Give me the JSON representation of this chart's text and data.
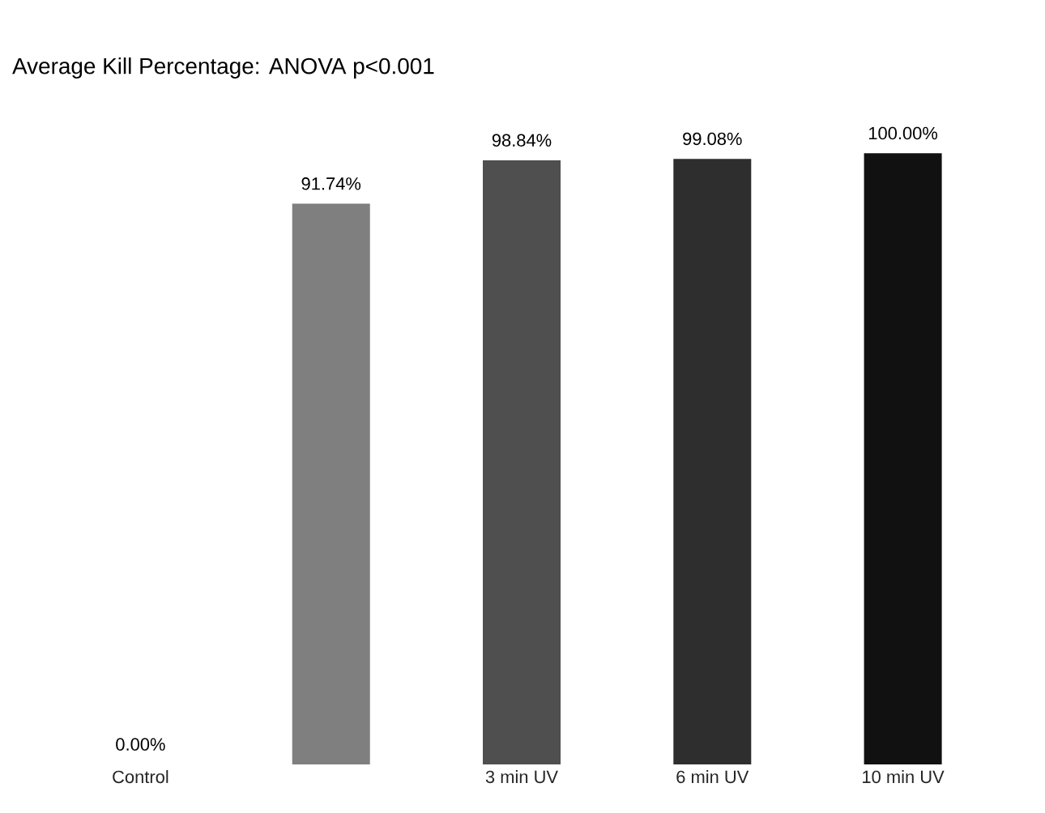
{
  "chart_data": {
    "type": "bar",
    "title": "Average Kill Percentage: ANOVA p<0.001",
    "categories": [
      "Control",
      null,
      "3 min UV",
      "6 min UV",
      "10 min UV"
    ],
    "values": [
      0,
      91.74,
      98.84,
      99.08,
      100
    ],
    "colors": [
      "#9a9a9a",
      "#7f7f7f",
      "#4f4f4f",
      "#2e2e2e",
      "#111111"
    ],
    "value_labels": [
      "0.00%",
      "91.74%",
      "98.84%",
      "99.08%",
      "100.00%"
    ]
  }
}
